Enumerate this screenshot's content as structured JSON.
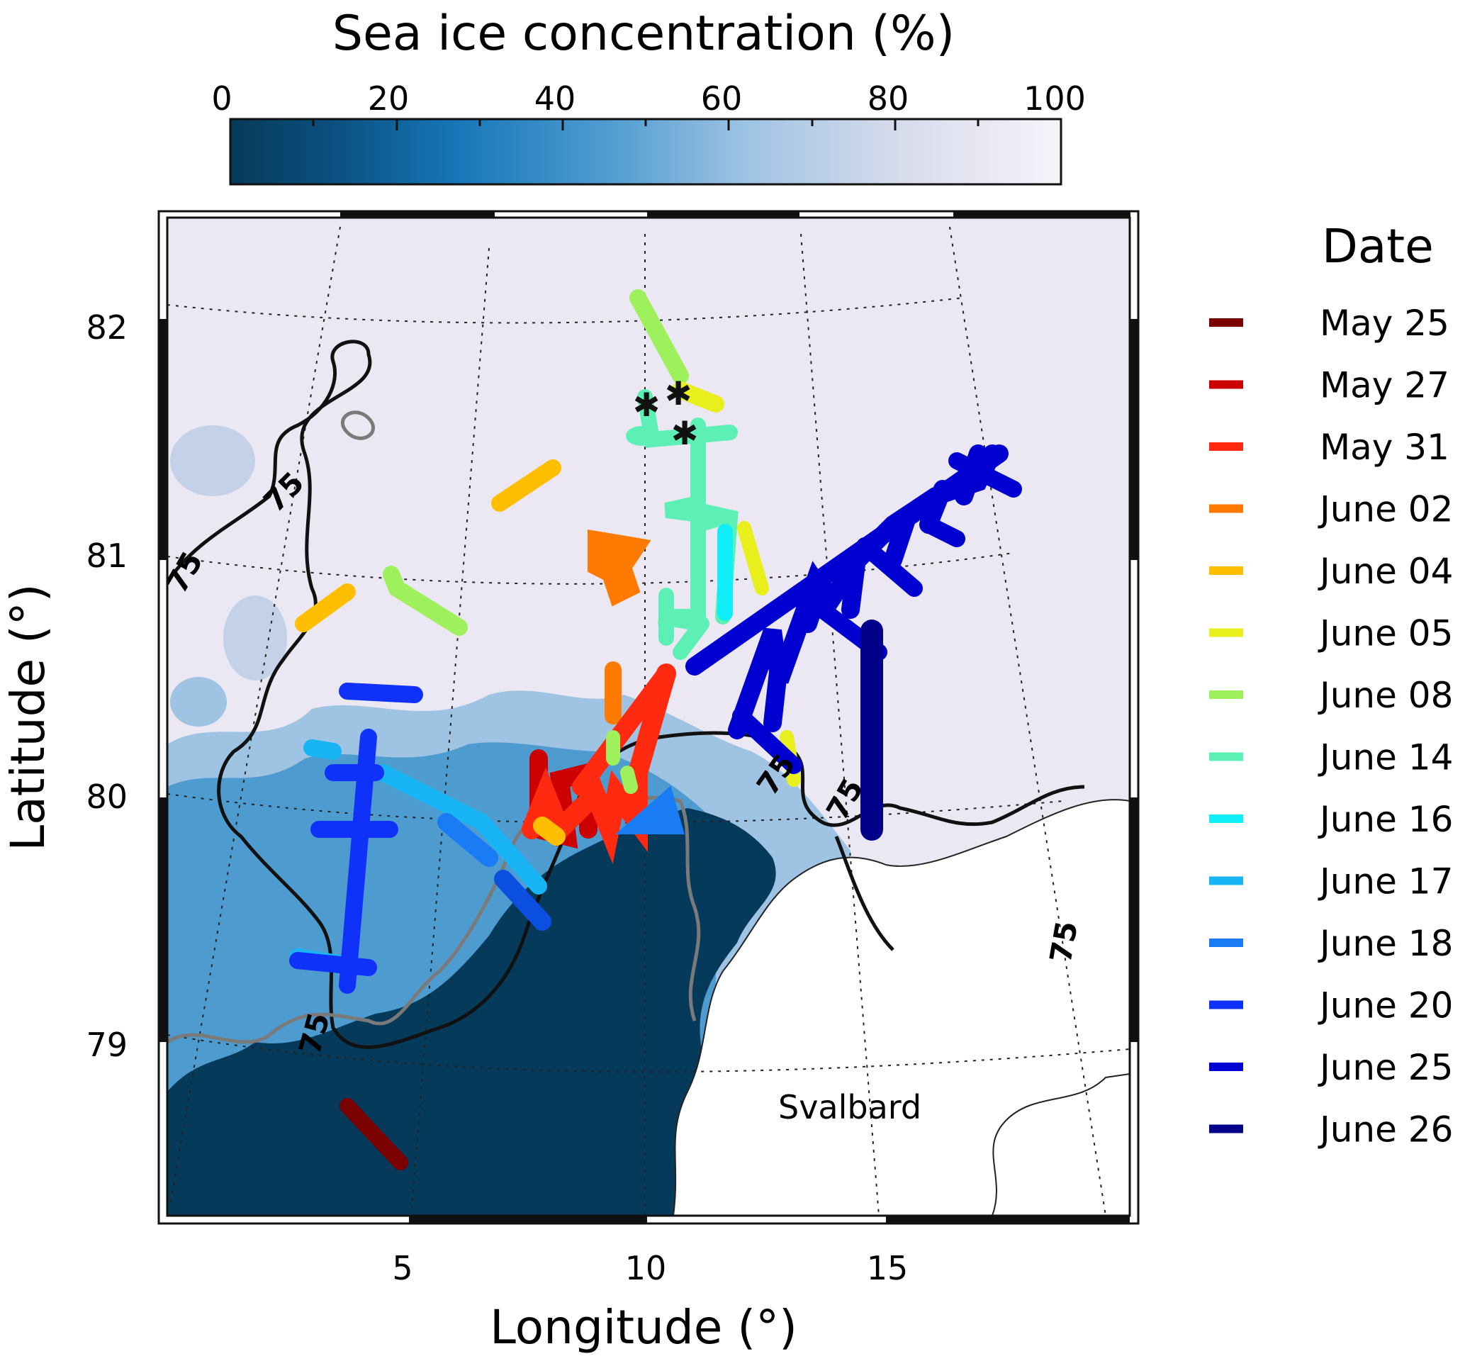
{
  "colorbar": {
    "title": "Sea ice concentration (%)",
    "ticks": [
      "0",
      "20",
      "40",
      "60",
      "80",
      "100"
    ],
    "colors": [
      "#063a5a",
      "#0b4f7e",
      "#1676b8",
      "#4e9bd0",
      "#9ec3e3",
      "#d6dbec",
      "#f7f3fa"
    ]
  },
  "map": {
    "xlabel": "Longitude (°)",
    "ylabel": "Latitude (°)",
    "lon_ticks": [
      "5",
      "10",
      "15"
    ],
    "lat_ticks": [
      "79",
      "80",
      "81",
      "82"
    ],
    "region_label": "Svalbard",
    "contour_label": "75",
    "colors": {
      "ice": "#ebe8f3",
      "open_water": "#063a5a",
      "land": "#ffffff",
      "contour": "#111111",
      "contour_other": "#7a7a7a"
    }
  },
  "legend": {
    "title": "Date",
    "items": [
      {
        "label": "May 25",
        "color": "#7b0000"
      },
      {
        "label": "May 27",
        "color": "#cc0000"
      },
      {
        "label": "May 31",
        "color": "#ff2a10"
      },
      {
        "label": "June 02",
        "color": "#ff7a00"
      },
      {
        "label": "June 04",
        "color": "#ffbf00"
      },
      {
        "label": "June 05",
        "color": "#e8ef1c"
      },
      {
        "label": "June 08",
        "color": "#9ef05c"
      },
      {
        "label": "June 14",
        "color": "#5cf0b4"
      },
      {
        "label": "June 16",
        "color": "#10eef8"
      },
      {
        "label": "June 17",
        "color": "#18b4f4"
      },
      {
        "label": "June 18",
        "color": "#1a7cf4"
      },
      {
        "label": "June 20",
        "color": "#1032f8"
      },
      {
        "label": "June 25",
        "color": "#0000d0"
      },
      {
        "label": "June 26",
        "color": "#00008a"
      }
    ]
  },
  "markers": {
    "symbol": "✱",
    "count": 3
  }
}
